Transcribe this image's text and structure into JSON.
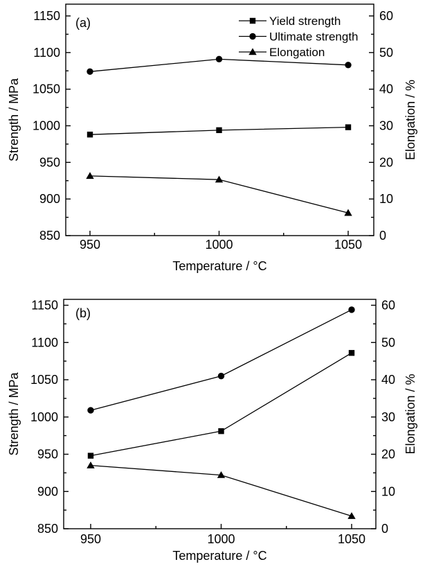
{
  "page": {
    "background": "#ffffff",
    "foreground": "#000000"
  },
  "chart_data": [
    {
      "panel_label": "(a)",
      "type": "line",
      "x": [
        950,
        1000,
        1050
      ],
      "x_minor": [
        975,
        1025
      ],
      "xlabel": "Temperature / °C",
      "ylabel_left": "Strength / MPa",
      "ylabel_right": "Elongation / %",
      "ylim_left": [
        850,
        1150
      ],
      "ylim_right": [
        0,
        60
      ],
      "yticks_left": [
        850,
        900,
        950,
        1000,
        1050,
        1100,
        1150
      ],
      "yticks_right": [
        0,
        10,
        20,
        30,
        40,
        50,
        60
      ],
      "grid": false,
      "legend": {
        "visible": true,
        "position": "top-right"
      },
      "series": [
        {
          "name": "Yield strength",
          "marker": "square",
          "axis": "left",
          "values": [
            988,
            994,
            998
          ]
        },
        {
          "name": "Ultimate strength",
          "marker": "circle",
          "axis": "left",
          "values": [
            1074,
            1091,
            1083
          ]
        },
        {
          "name": "Elongation",
          "marker": "triangle",
          "axis": "right",
          "values": [
            16.3,
            15.3,
            6.2
          ]
        }
      ]
    },
    {
      "panel_label": "(b)",
      "type": "line",
      "x": [
        950,
        1000,
        1050
      ],
      "x_minor": [
        975,
        1025
      ],
      "xlabel": "Temperature / °C",
      "ylabel_left": "Strength / MPa",
      "ylabel_right": "Elongation / %",
      "ylim_left": [
        850,
        1150
      ],
      "ylim_right": [
        0,
        60
      ],
      "yticks_left": [
        850,
        900,
        950,
        1000,
        1050,
        1100,
        1150
      ],
      "yticks_right": [
        0,
        10,
        20,
        30,
        40,
        50,
        60
      ],
      "grid": false,
      "legend": {
        "visible": false,
        "position": "none"
      },
      "series": [
        {
          "name": "Yield strength",
          "marker": "square",
          "axis": "left",
          "values": [
            948,
            981,
            1086
          ]
        },
        {
          "name": "Ultimate strength",
          "marker": "circle",
          "axis": "left",
          "values": [
            1009,
            1055,
            1144
          ]
        },
        {
          "name": "Elongation",
          "marker": "triangle",
          "axis": "right",
          "values": [
            17.0,
            14.4,
            3.4
          ]
        }
      ]
    }
  ]
}
